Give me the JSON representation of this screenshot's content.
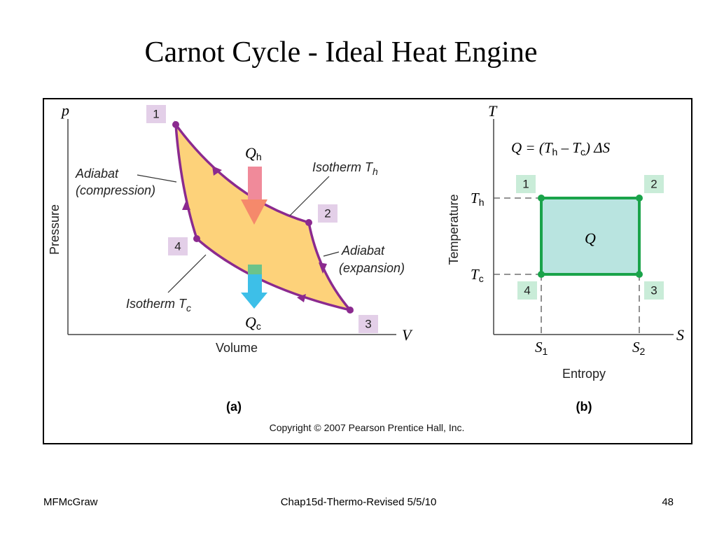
{
  "title": "Carnot Cycle - Ideal Heat Engine",
  "figure": {
    "panel_a": {
      "y_symbol": "p",
      "x_symbol": "V",
      "y_label": "Pressure",
      "x_label": "Volume",
      "points": [
        "1",
        "2",
        "3",
        "4"
      ],
      "adiabat_compression": [
        "Adiabat",
        "(compression)"
      ],
      "adiabat_expansion": [
        "Adiabat",
        "(expansion)"
      ],
      "isotherm_h": {
        "main": "Isotherm T",
        "sub": "h"
      },
      "isotherm_c": {
        "main": "Isotherm T",
        "sub": "c"
      },
      "heat_in": {
        "main": "Q",
        "sub": "h"
      },
      "heat_out": {
        "main": "Q",
        "sub": "c"
      },
      "caption": "(a)"
    },
    "panel_b": {
      "y_symbol": "T",
      "x_symbol": "S",
      "y_label": "Temperature",
      "x_label": "Entropy",
      "equation": [
        "Q = (T",
        "h",
        " – T",
        "c",
        ") ΔS"
      ],
      "t_hot": {
        "main": "T",
        "sub": "h"
      },
      "t_cold": {
        "main": "T",
        "sub": "c"
      },
      "s1": {
        "main": "S",
        "sub": "1"
      },
      "s2": {
        "main": "S",
        "sub": "2"
      },
      "points": [
        "1",
        "2",
        "3",
        "4"
      ],
      "area_label": "Q",
      "caption": "(b)"
    },
    "copyright": "Copyright © 2007 Pearson Prentice Hall, Inc."
  },
  "footer": {
    "left": "MFMcGraw",
    "center": "Chap15d-Thermo-Revised 5/5/10",
    "right": "48"
  }
}
